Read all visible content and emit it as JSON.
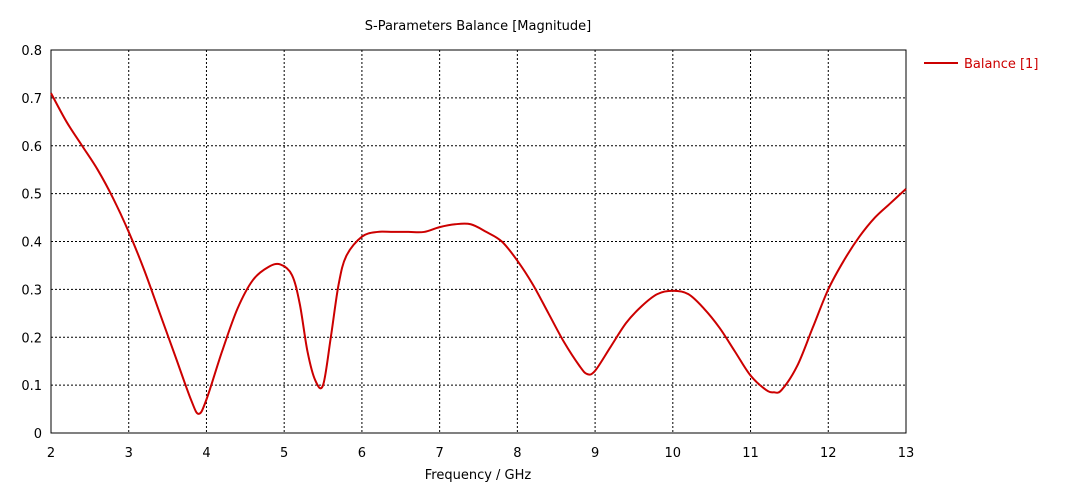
{
  "chart_data": {
    "type": "line",
    "title": "S-Parameters Balance [Magnitude]",
    "xlabel": "Frequency / GHz",
    "ylabel": "",
    "xlim": [
      2,
      13
    ],
    "ylim": [
      0,
      0.8
    ],
    "xticks": [
      "2",
      "3",
      "4",
      "5",
      "6",
      "7",
      "8",
      "9",
      "10",
      "11",
      "12",
      "13"
    ],
    "yticks": [
      "0",
      "0.1",
      "0.2",
      "0.3",
      "0.4",
      "0.5",
      "0.6",
      "0.7",
      "0.8"
    ],
    "grid": true,
    "legend_position": "top-right",
    "series": [
      {
        "name": "Balance [1]",
        "color": "#cc0000",
        "x": [
          2.0,
          2.2,
          2.4,
          2.6,
          2.8,
          3.0,
          3.2,
          3.4,
          3.6,
          3.8,
          3.9,
          4.0,
          4.2,
          4.4,
          4.6,
          4.8,
          4.95,
          5.1,
          5.2,
          5.3,
          5.4,
          5.5,
          5.6,
          5.7,
          5.8,
          6.0,
          6.2,
          6.4,
          6.6,
          6.8,
          7.0,
          7.2,
          7.4,
          7.6,
          7.8,
          8.0,
          8.2,
          8.4,
          8.6,
          8.8,
          8.9,
          9.0,
          9.2,
          9.4,
          9.6,
          9.8,
          10.0,
          10.2,
          10.4,
          10.6,
          10.8,
          11.0,
          11.2,
          11.3,
          11.4,
          11.6,
          11.8,
          12.0,
          12.2,
          12.4,
          12.6,
          12.8,
          13.0
        ],
        "y": [
          0.71,
          0.65,
          0.6,
          0.55,
          0.49,
          0.42,
          0.34,
          0.25,
          0.16,
          0.07,
          0.04,
          0.07,
          0.17,
          0.26,
          0.32,
          0.347,
          0.352,
          0.33,
          0.27,
          0.17,
          0.11,
          0.1,
          0.2,
          0.31,
          0.37,
          0.41,
          0.42,
          0.42,
          0.42,
          0.42,
          0.43,
          0.436,
          0.436,
          0.42,
          0.4,
          0.36,
          0.31,
          0.25,
          0.19,
          0.14,
          0.123,
          0.13,
          0.18,
          0.23,
          0.265,
          0.29,
          0.297,
          0.29,
          0.26,
          0.22,
          0.17,
          0.12,
          0.09,
          0.085,
          0.09,
          0.14,
          0.22,
          0.3,
          0.36,
          0.41,
          0.45,
          0.48,
          0.51
        ]
      }
    ]
  }
}
